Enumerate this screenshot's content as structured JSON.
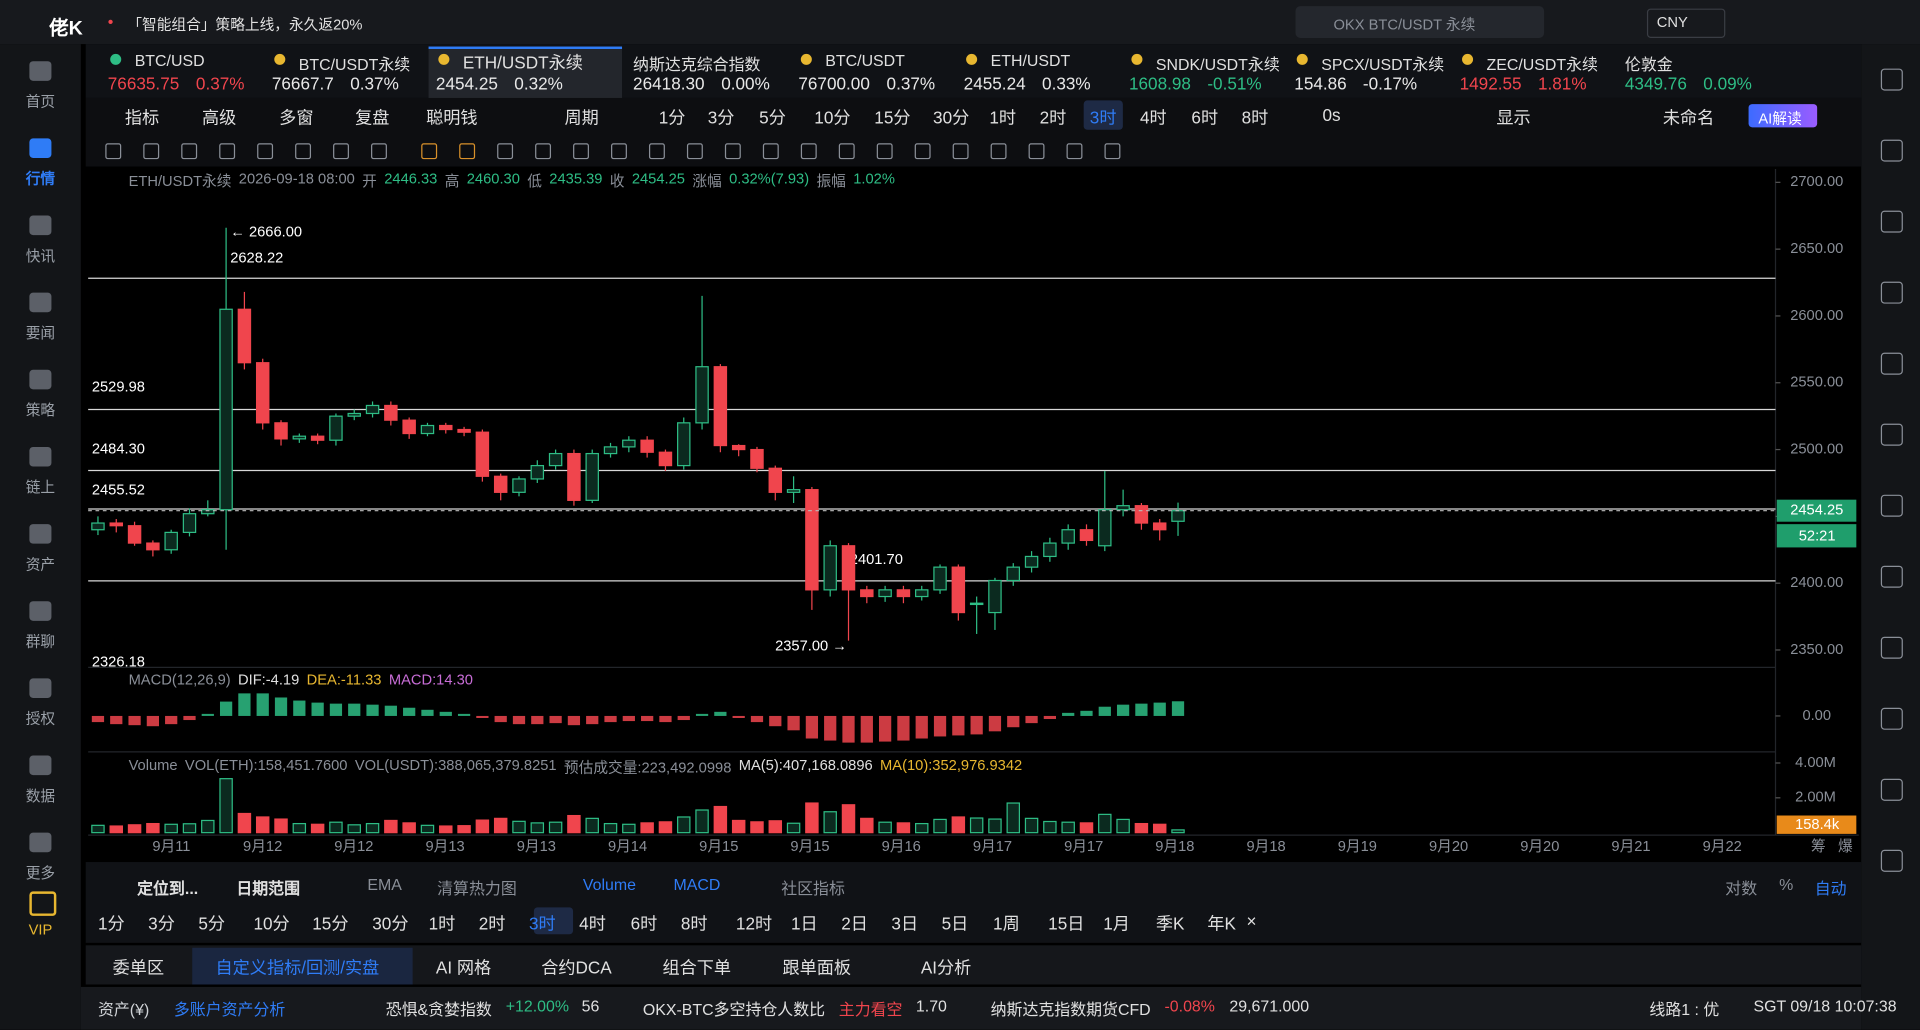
{
  "topbar": {
    "logo": "佬K",
    "notice": "「智能组合」策略上线，永久返20%",
    "search": "OKX BTC/USDT 永续",
    "currency": "CNY"
  },
  "sidebar": [
    "首页",
    "行情",
    "快讯",
    "要闻",
    "策略",
    "链上",
    "资产",
    "群聊",
    "授权",
    "数据",
    "更多",
    "VIP"
  ],
  "sidebar_active": "行情",
  "tickers": [
    {
      "name": "BTC/USD",
      "price": "76635.75",
      "change": "0.37%",
      "color": "#f0454d"
    },
    {
      "name": "BTC/USDT永续",
      "price": "76667.7",
      "change": "0.37%",
      "color": "#e8e8e8"
    },
    {
      "name": "ETH/USDT永续",
      "price": "2454.25",
      "change": "0.32%",
      "color": "#e8e8e8"
    },
    {
      "name": "纳斯达克综合指数",
      "price": "26418.30",
      "change": "0.00%",
      "color": "#e8e8e8"
    },
    {
      "name": "BTC/USDT",
      "price": "76700.00",
      "change": "0.37%",
      "color": "#e8e8e8"
    },
    {
      "name": "ETH/USDT",
      "price": "2455.24",
      "change": "0.33%",
      "color": "#e8e8e8"
    },
    {
      "name": "SNDK/USDT永续",
      "price": "1608.98",
      "change": "-0.51%",
      "color": "#2ebd85"
    },
    {
      "name": "SPCX/USDT永续",
      "price": "154.86",
      "change": "-0.17%",
      "color": "#e8e8e8"
    },
    {
      "name": "ZEC/USDT永续",
      "price": "1492.55",
      "change": "1.81%",
      "color": "#f0454d"
    },
    {
      "name": "伦敦金",
      "price": "4349.76",
      "change": "0.09%",
      "color": "#2ebd85"
    }
  ],
  "toolbar": [
    "指标",
    "高级",
    "多窗",
    "复盘",
    "聪明钱",
    "周期",
    "1分",
    "3分",
    "5分",
    "10分",
    "15分",
    "30分",
    "1时",
    "2时",
    "3时",
    "4时",
    "6时",
    "8时",
    "0s",
    "显示",
    "未命名",
    "AI解读"
  ],
  "toolbar_active": "3时",
  "info": [
    "ETH/USDT永续",
    "2026-09-18 08:00",
    "开",
    "2446.33",
    "高",
    "2460.30",
    "低",
    "2435.39",
    "收",
    "2454.25",
    "涨幅",
    "0.32%(7.93)",
    "振幅",
    "1.02%"
  ],
  "chart": {
    "type": "candlestick",
    "ylim": [
      2337,
      2710
    ],
    "yticks": [
      {
        "value": 2700,
        "label": "2700.00"
      },
      {
        "value": 2650,
        "label": "2650.00"
      },
      {
        "value": 2600,
        "label": "2600.00"
      },
      {
        "value": 2550,
        "label": "2550.00"
      },
      {
        "value": 2500,
        "label": "2500.00"
      },
      {
        "value": 2450,
        "label": "2450.00"
      },
      {
        "value": 2400,
        "label": "2400.00"
      },
      {
        "value": 2350,
        "label": "2350.00"
      }
    ],
    "up_color": "#2ebd85",
    "down_color": "#f0454d",
    "open": [
      2440,
      2445,
      2443,
      2430,
      2425,
      2438,
      2452,
      2455,
      2605,
      2565,
      2520,
      2508,
      2510,
      2507,
      2525,
      2527,
      2533,
      2522,
      2512,
      2518,
      2515,
      2513,
      2480,
      2468,
      2478,
      2488,
      2497,
      2462,
      2497,
      2502,
      2507,
      2498,
      2488,
      2520,
      2562,
      2503,
      2500,
      2486,
      2468,
      2470,
      2395,
      2428,
      2395,
      2390,
      2395,
      2390,
      2395,
      2412,
      2385,
      2378,
      2402,
      2412,
      2420,
      2430,
      2440,
      2428,
      2455,
      2458,
      2445,
      2446.33
    ],
    "high": [
      2450,
      2448,
      2446,
      2432,
      2440,
      2456,
      2462,
      2666,
      2618,
      2568,
      2522,
      2512,
      2512,
      2527,
      2530,
      2536,
      2536,
      2524,
      2520,
      2520,
      2517,
      2515,
      2482,
      2480,
      2492,
      2500,
      2500,
      2500,
      2505,
      2510,
      2510,
      2500,
      2524,
      2615,
      2564,
      2504,
      2502,
      2488,
      2480,
      2472,
      2432,
      2430,
      2398,
      2398,
      2398,
      2398,
      2414,
      2414,
      2390,
      2404,
      2415,
      2424,
      2434,
      2444,
      2444,
      2484,
      2470,
      2460,
      2448,
      2460.3
    ],
    "low": [
      2436,
      2438,
      2428,
      2420,
      2422,
      2435,
      2450,
      2425,
      2560,
      2515,
      2503,
      2505,
      2504,
      2503,
      2522,
      2524,
      2518,
      2508,
      2510,
      2512,
      2510,
      2476,
      2462,
      2465,
      2475,
      2485,
      2458,
      2460,
      2494,
      2498,
      2494,
      2484,
      2485,
      2515,
      2498,
      2495,
      2483,
      2462,
      2460,
      2380,
      2390,
      2357,
      2385,
      2386,
      2385,
      2387,
      2392,
      2372,
      2362,
      2365,
      2398,
      2408,
      2416,
      2425,
      2428,
      2424,
      2450,
      2440,
      2432,
      2435.39
    ],
    "close": [
      2445,
      2443,
      2430,
      2425,
      2438,
      2452,
      2455,
      2605,
      2565,
      2520,
      2508,
      2510,
      2507,
      2525,
      2527,
      2533,
      2522,
      2512,
      2518,
      2515,
      2513,
      2480,
      2468,
      2478,
      2488,
      2497,
      2462,
      2497,
      2502,
      2507,
      2498,
      2488,
      2520,
      2562,
      2503,
      2500,
      2486,
      2468,
      2470,
      2395,
      2428,
      2395,
      2390,
      2395,
      2390,
      2395,
      2412,
      2378,
      2385,
      2402,
      2412,
      2420,
      2430,
      2440,
      2432,
      2455,
      2458,
      2445,
      2440,
      2454.25
    ],
    "levels": [
      {
        "value": 2628.22,
        "label": "2628.22"
      },
      {
        "value": 2529.98,
        "label": "2529.98"
      },
      {
        "value": 2484.3,
        "label": "2484.30"
      },
      {
        "value": 2455.52,
        "label": "2455.52"
      },
      {
        "value": 2401.7,
        "label": "2401.70"
      }
    ],
    "annotations": [
      {
        "value": 2666,
        "label": "← 2666.00"
      },
      {
        "value": 2357,
        "label": "2357.00 →"
      },
      {
        "value": 2326.18,
        "label": "2326.18"
      }
    ],
    "last_price": {
      "value": 2454.25,
      "label": "2454.25"
    },
    "countdown": "52:21",
    "x_labels": [
      "9月11",
      "9月12",
      "9月12",
      "9月13",
      "9月13",
      "9月14",
      "9月15",
      "9月15",
      "9月16",
      "9月17",
      "9月17",
      "9月18",
      "9月18",
      "9月19",
      "9月20",
      "9月20",
      "9月21",
      "9月22"
    ],
    "axis_extra": [
      "筹",
      "爆"
    ]
  },
  "macd": {
    "header": [
      "MACD(12,26,9)",
      "DIF:-4.19",
      "DEA:-11.33",
      "MACD:14.30"
    ],
    "ylim": [
      -35,
      45
    ],
    "yticks": [
      {
        "value": 0,
        "label": "0.00"
      }
    ],
    "values": [
      -6,
      -8,
      -9,
      -10,
      -8,
      -4,
      2,
      14,
      22,
      22,
      18,
      15,
      13,
      12,
      12,
      11,
      10,
      8,
      6,
      4,
      2,
      -2,
      -6,
      -8,
      -8,
      -7,
      -9,
      -8,
      -6,
      -5,
      -5,
      -6,
      -4,
      2,
      4,
      -2,
      -6,
      -10,
      -14,
      -22,
      -24,
      -26,
      -26,
      -25,
      -24,
      -22,
      -20,
      -19,
      -18,
      -15,
      -11,
      -7,
      -3,
      3,
      5,
      9,
      11,
      12,
      13,
      14.3
    ]
  },
  "volume": {
    "header": [
      "Volume",
      "VOL(ETH):158,451.7600",
      "VOL(USDT):388,065,379.8251",
      "预估成交量:223,492.0998",
      "MA(5):407,168.0896",
      "MA(10):352,976.9342"
    ],
    "ylim": [
      0,
      4500000
    ],
    "yticks": [
      {
        "value": 4000000,
        "label": "4.00M"
      },
      {
        "value": 2000000,
        "label": "2.00M"
      }
    ],
    "last": {
      "value": 158400,
      "label": "158.4k"
    },
    "values": [
      420000,
      380000,
      450000,
      520000,
      480000,
      510000,
      700000,
      3100000,
      1100000,
      900000,
      780000,
      520000,
      480000,
      600000,
      450000,
      520000,
      700000,
      560000,
      420000,
      380000,
      400000,
      720000,
      820000,
      650000,
      560000,
      600000,
      980000,
      820000,
      520000,
      480000,
      560000,
      620000,
      900000,
      1300000,
      1500000,
      700000,
      620000,
      680000,
      540000,
      1700000,
      1200000,
      1600000,
      820000,
      600000,
      560000,
      520000,
      760000,
      900000,
      840000,
      780000,
      1700000,
      820000,
      640000,
      600000,
      560000,
      1050000,
      760000,
      520000,
      480000,
      158400
    ]
  },
  "bottom_bar": {
    "locate": "定位到...",
    "range": "日期范围",
    "indicators": [
      "EMA",
      "清算热力图",
      "Volume",
      "MACD",
      "社区指标"
    ],
    "active_indicators": [
      "Volume",
      "MACD"
    ],
    "right": [
      "对数",
      "%",
      "自动"
    ]
  },
  "periods": [
    "1分",
    "3分",
    "5分",
    "10分",
    "15分",
    "30分",
    "1时",
    "2时",
    "3时",
    "4时",
    "6时",
    "8时",
    "12时",
    "1日",
    "2日",
    "3日",
    "5日",
    "1周",
    "15日",
    "1月",
    "季K",
    "年K",
    "×"
  ],
  "periods_active": "3时",
  "tabs": [
    "委单区",
    "自定义指标/回测/实盘",
    "AI 网格",
    "合约DCA",
    "组合下单",
    "跟单面板",
    "AI分析"
  ],
  "tabs_active": "自定义指标/回测/实盘",
  "status": [
    "资产(¥)",
    "多账户资产分析",
    "恐惧&贪婪指数",
    "+12.00%",
    "56",
    "OKX-BTC多空持仓人数比",
    "主力看空",
    "1.70",
    "纳斯达克指数期货CFD",
    "-0.08%",
    "29,671.000",
    "线路1 : 优",
    "SGT 09/18 10:07:38"
  ]
}
